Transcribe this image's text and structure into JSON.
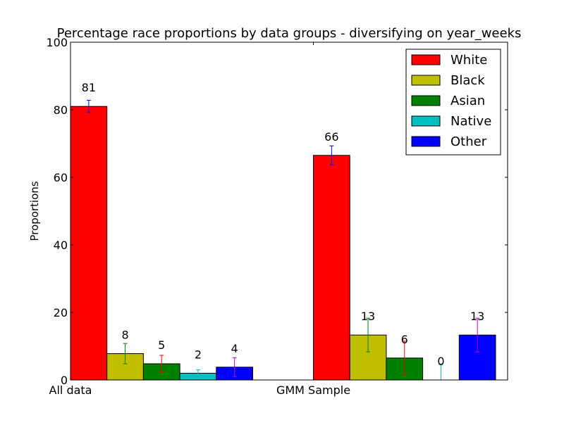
{
  "chart_data": {
    "type": "bar",
    "title": "Percentage race proportions by data groups - diversifying on year_weeks",
    "xlabel": "",
    "ylabel": "Proportions",
    "ylim": [
      0,
      100
    ],
    "yticks": [
      0,
      20,
      40,
      60,
      80,
      100
    ],
    "categories": [
      "All data",
      "GMM Sample"
    ],
    "legend_position": "top-right",
    "series": [
      {
        "name": "White",
        "color": "#ff0000",
        "error_color": "#0000ff",
        "values": [
          81.0,
          66.5
        ],
        "errors": [
          1.8,
          2.8
        ],
        "labels": [
          "81",
          "66"
        ]
      },
      {
        "name": "Black",
        "color": "#bfbf00",
        "error_color": "#008000",
        "values": [
          7.8,
          13.3
        ],
        "errors": [
          3.0,
          5.0
        ],
        "labels": [
          "8",
          "13"
        ]
      },
      {
        "name": "Asian",
        "color": "#008000",
        "error_color": "#ff0000",
        "values": [
          4.8,
          6.5
        ],
        "errors": [
          2.5,
          5.0
        ],
        "labels": [
          "5",
          "6"
        ]
      },
      {
        "name": "Native",
        "color": "#00bfbf",
        "error_color": "#00bfbf",
        "values": [
          2.0,
          0.0
        ],
        "errors": [
          1.0,
          4.8
        ],
        "labels": [
          "2",
          "0"
        ]
      },
      {
        "name": "Other",
        "color": "#0000ff",
        "error_color": "#bf00bf",
        "values": [
          3.8,
          13.3
        ],
        "errors": [
          2.8,
          5.0
        ],
        "labels": [
          "4",
          "13"
        ]
      }
    ]
  }
}
